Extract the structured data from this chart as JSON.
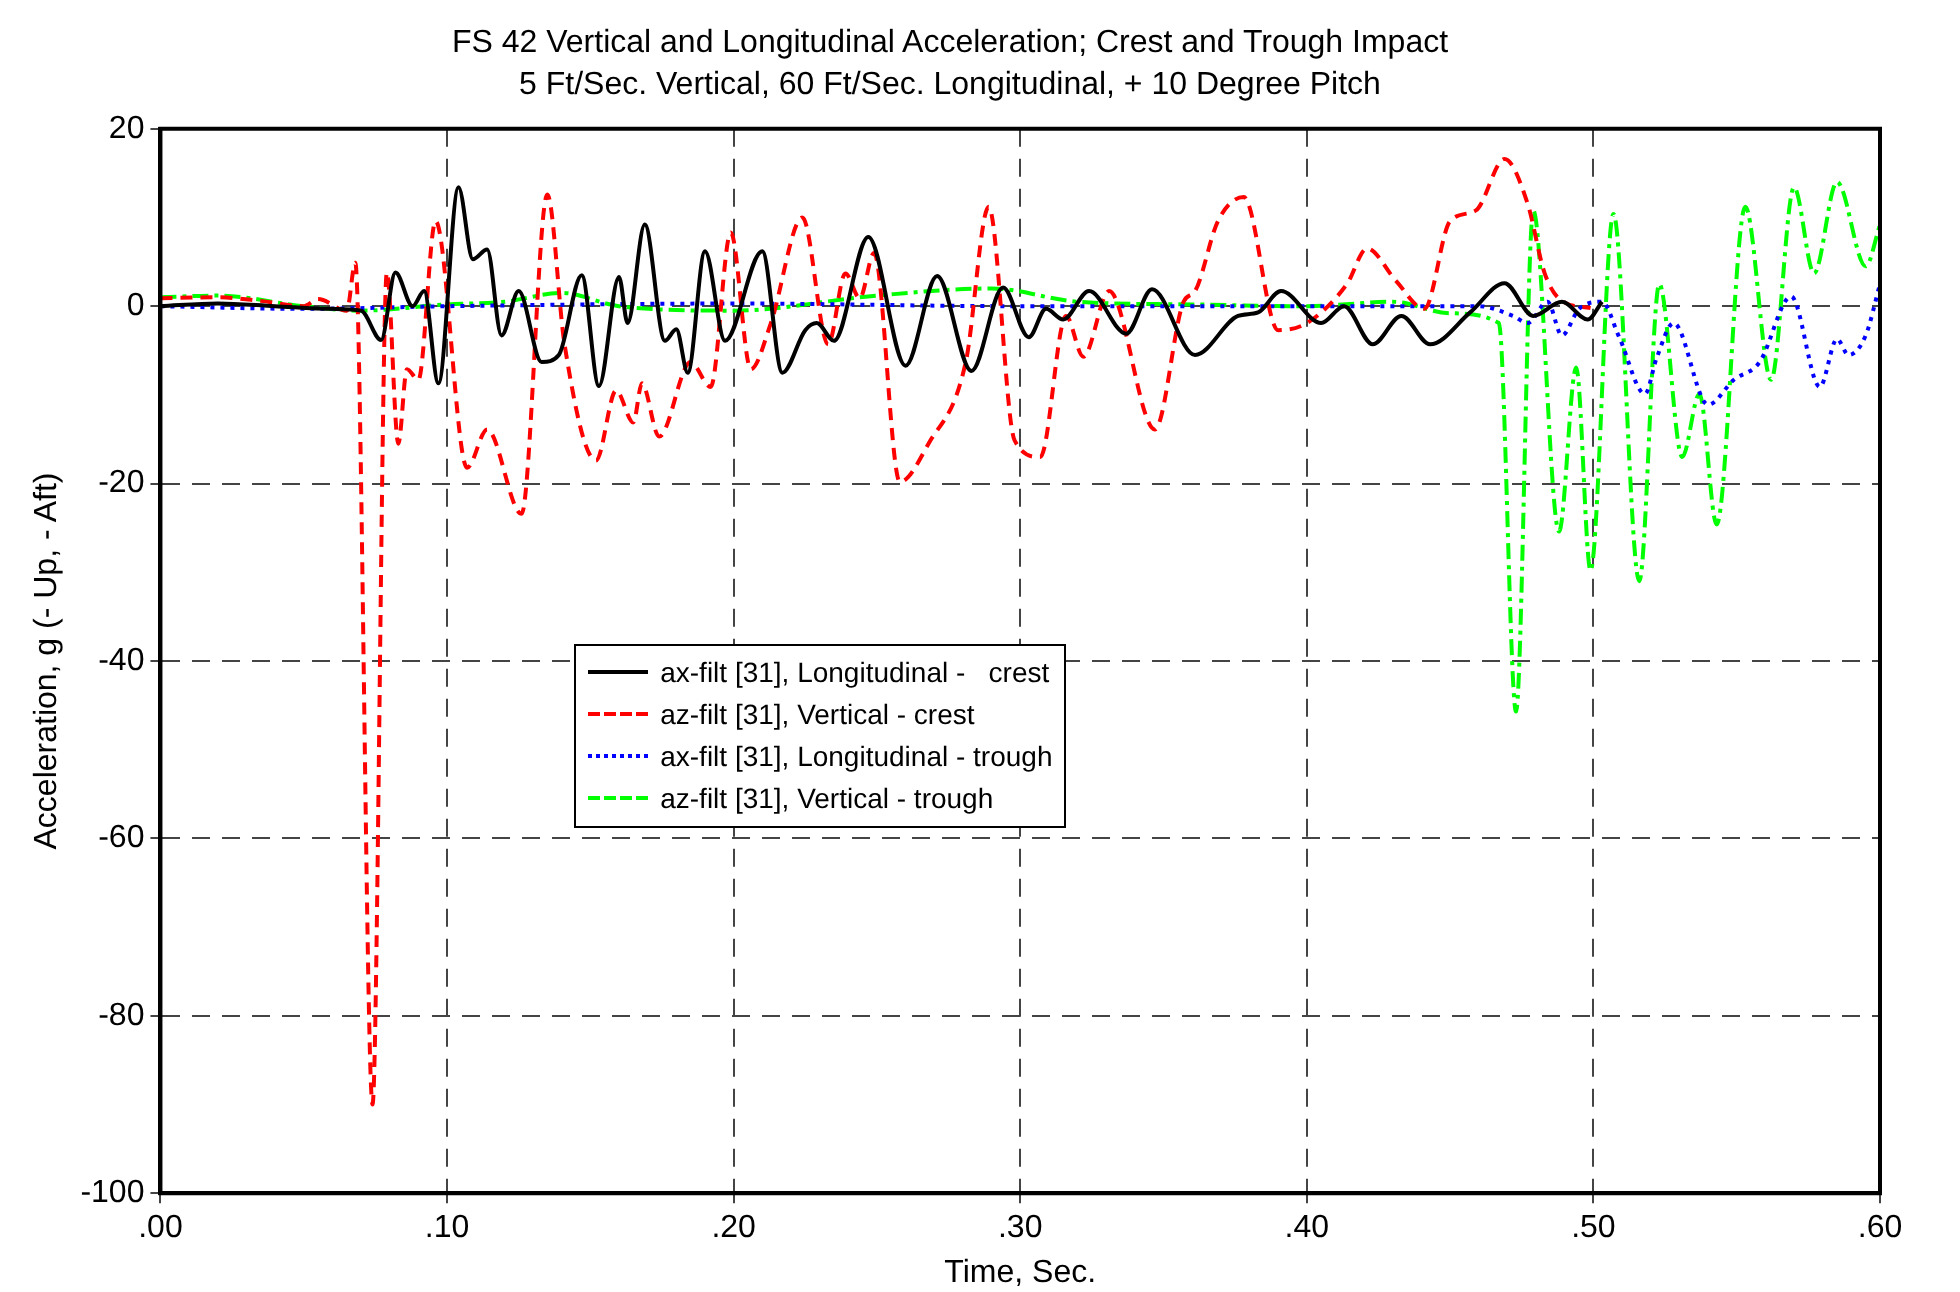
{
  "chart_data": {
    "type": "line",
    "title": "FS 42 Vertical and Longitudinal Acceleration; Crest and Trough Impact",
    "subtitle": "5 Ft/Sec. Vertical, 60 Ft/Sec. Longitudinal, + 10 Degree Pitch",
    "xlabel": "Time, Sec.",
    "ylabel": "Acceleration, g (- Up, - Aft)",
    "xlim": [
      0,
      0.6
    ],
    "xticks": [
      {
        "value": 0,
        "label": ".00"
      },
      {
        "value": 0.1,
        "label": ".10"
      },
      {
        "value": 0.2,
        "label": ".20"
      },
      {
        "value": 0.3,
        "label": ".30"
      },
      {
        "value": 0.4,
        "label": ".40"
      },
      {
        "value": 0.5,
        "label": ".50"
      },
      {
        "value": 0.6,
        "label": ".60"
      }
    ],
    "ylim": [
      -100,
      20
    ],
    "yticks": [
      -100,
      -80,
      -60,
      -40,
      -20,
      0,
      20
    ],
    "grid": true,
    "legend": "center",
    "marker": "none",
    "series": [
      {
        "name": "ax-filt [31], Longitudinal -   crest",
        "color": "#000000",
        "line_style": "solid",
        "x": [
          0,
          0.02,
          0.04,
          0.06,
          0.07,
          0.077,
          0.082,
          0.088,
          0.092,
          0.097,
          0.104,
          0.109,
          0.114,
          0.119,
          0.125,
          0.133,
          0.139,
          0.147,
          0.153,
          0.16,
          0.163,
          0.169,
          0.176,
          0.18,
          0.184,
          0.19,
          0.197,
          0.21,
          0.217,
          0.225,
          0.229,
          0.235,
          0.247,
          0.26,
          0.271,
          0.283,
          0.294,
          0.303,
          0.309,
          0.315,
          0.324,
          0.337,
          0.346,
          0.361,
          0.376,
          0.383,
          0.391,
          0.405,
          0.413,
          0.423,
          0.433,
          0.443,
          0.457,
          0.469,
          0.479,
          0.489,
          0.498,
          0.503
        ],
        "values": [
          0,
          0.3,
          0,
          -0.3,
          -0.5,
          -3.8,
          3.8,
          0,
          1.7,
          -8.7,
          13.4,
          5.3,
          6.4,
          -3.3,
          1.7,
          -6.3,
          -5.5,
          3.5,
          -9,
          3.3,
          -1.9,
          9.2,
          -3.9,
          -2.6,
          -7.5,
          6.2,
          -3.9,
          6.2,
          -7.5,
          -2.7,
          -1.9,
          -3.9,
          7.8,
          -6.7,
          3.4,
          -7.3,
          2.1,
          -3.5,
          -0.3,
          -1.5,
          1.7,
          -3.1,
          1.9,
          -5.5,
          -1.1,
          -0.7,
          1.7,
          -1.9,
          0,
          -4.3,
          -1.1,
          -4.3,
          -0.7,
          2.6,
          -1.1,
          0.5,
          -1.5,
          0.5
        ]
      },
      {
        "name": "az-filt [31], Vertical - crest",
        "color": "#ff0000",
        "line_style": "dashed",
        "x": [
          0,
          0.02,
          0.035,
          0.05,
          0.055,
          0.065,
          0.068,
          0.074,
          0.079,
          0.083,
          0.086,
          0.09,
          0.096,
          0.107,
          0.114,
          0.126,
          0.135,
          0.141,
          0.152,
          0.159,
          0.165,
          0.168,
          0.174,
          0.185,
          0.192,
          0.199,
          0.206,
          0.213,
          0.224,
          0.233,
          0.239,
          0.244,
          0.249,
          0.258,
          0.268,
          0.281,
          0.289,
          0.298,
          0.307,
          0.316,
          0.322,
          0.331,
          0.347,
          0.357,
          0.361,
          0.369,
          0.378,
          0.39,
          0.4,
          0.414,
          0.421,
          0.431,
          0.441,
          0.45,
          0.459,
          0.469,
          0.477,
          0.483,
          0.489,
          0.499
        ],
        "values": [
          0.9,
          1,
          0.6,
          0,
          0.8,
          -0.5,
          4.9,
          -90,
          3.8,
          -15.5,
          -7.1,
          -8.3,
          9.6,
          -18.2,
          -13.9,
          -23.4,
          12.6,
          -4.3,
          -17.4,
          -9.5,
          -13.1,
          -8.7,
          -14.7,
          -6.3,
          -9.1,
          8.3,
          -7.1,
          -1.9,
          10,
          -4.3,
          3.7,
          0.9,
          6,
          -19.8,
          -15.5,
          -6.3,
          11.2,
          -15.1,
          -17,
          -1.1,
          -5.7,
          1.7,
          -13.9,
          0.5,
          1.7,
          9.6,
          12.3,
          -2.7,
          -1.9,
          2.5,
          6.5,
          2.9,
          -0.3,
          9.6,
          10.8,
          16.6,
          11.6,
          3.7,
          0.6,
          -0.2
        ]
      },
      {
        "name": "ax-filt [31], Longitudinal - trough",
        "color": "#0000ff",
        "line_style": "dotted",
        "x": [
          0,
          0.05,
          0.1,
          0.2,
          0.3,
          0.4,
          0.46,
          0.472,
          0.477,
          0.484,
          0.489,
          0.495,
          0.503,
          0.509,
          0.518,
          0.522,
          0.528,
          0.54,
          0.549,
          0.558,
          0.569,
          0.579,
          0.585,
          0.589,
          0.595,
          0.6
        ],
        "values": [
          0,
          -0.3,
          0,
          0.3,
          0,
          0,
          0,
          -1.1,
          -1.9,
          0.5,
          -3.3,
          -0.3,
          0.5,
          -3.5,
          -9.9,
          -5.9,
          -1.9,
          -11.1,
          -8.3,
          -6.3,
          1.1,
          -9.1,
          -3.7,
          -5.5,
          -3.3,
          2.5
        ]
      },
      {
        "name": "az-filt [31], Vertical - trough",
        "color": "#00ff00",
        "line_style": "dashdot",
        "x": [
          0,
          0.02,
          0.05,
          0.07,
          0.1,
          0.12,
          0.14,
          0.16,
          0.2,
          0.25,
          0.29,
          0.32,
          0.36,
          0.4,
          0.43,
          0.45,
          0.467,
          0.473,
          0.479,
          0.488,
          0.494,
          0.499,
          0.507,
          0.516,
          0.523,
          0.531,
          0.537,
          0.543,
          0.553,
          0.562,
          0.57,
          0.577,
          0.585,
          0.595,
          0.6
        ],
        "values": [
          1,
          1.2,
          0,
          -0.5,
          0.2,
          0.5,
          1.5,
          0,
          -0.5,
          1.2,
          2,
          0.5,
          0.2,
          0,
          0.5,
          -0.8,
          -1.9,
          -45.7,
          10.8,
          -25.4,
          -6.9,
          -29.8,
          10.4,
          -31,
          2.5,
          -17,
          -9.9,
          -24.6,
          11.2,
          -8.3,
          13.4,
          3.7,
          14,
          4.5,
          9.2
        ]
      }
    ]
  }
}
